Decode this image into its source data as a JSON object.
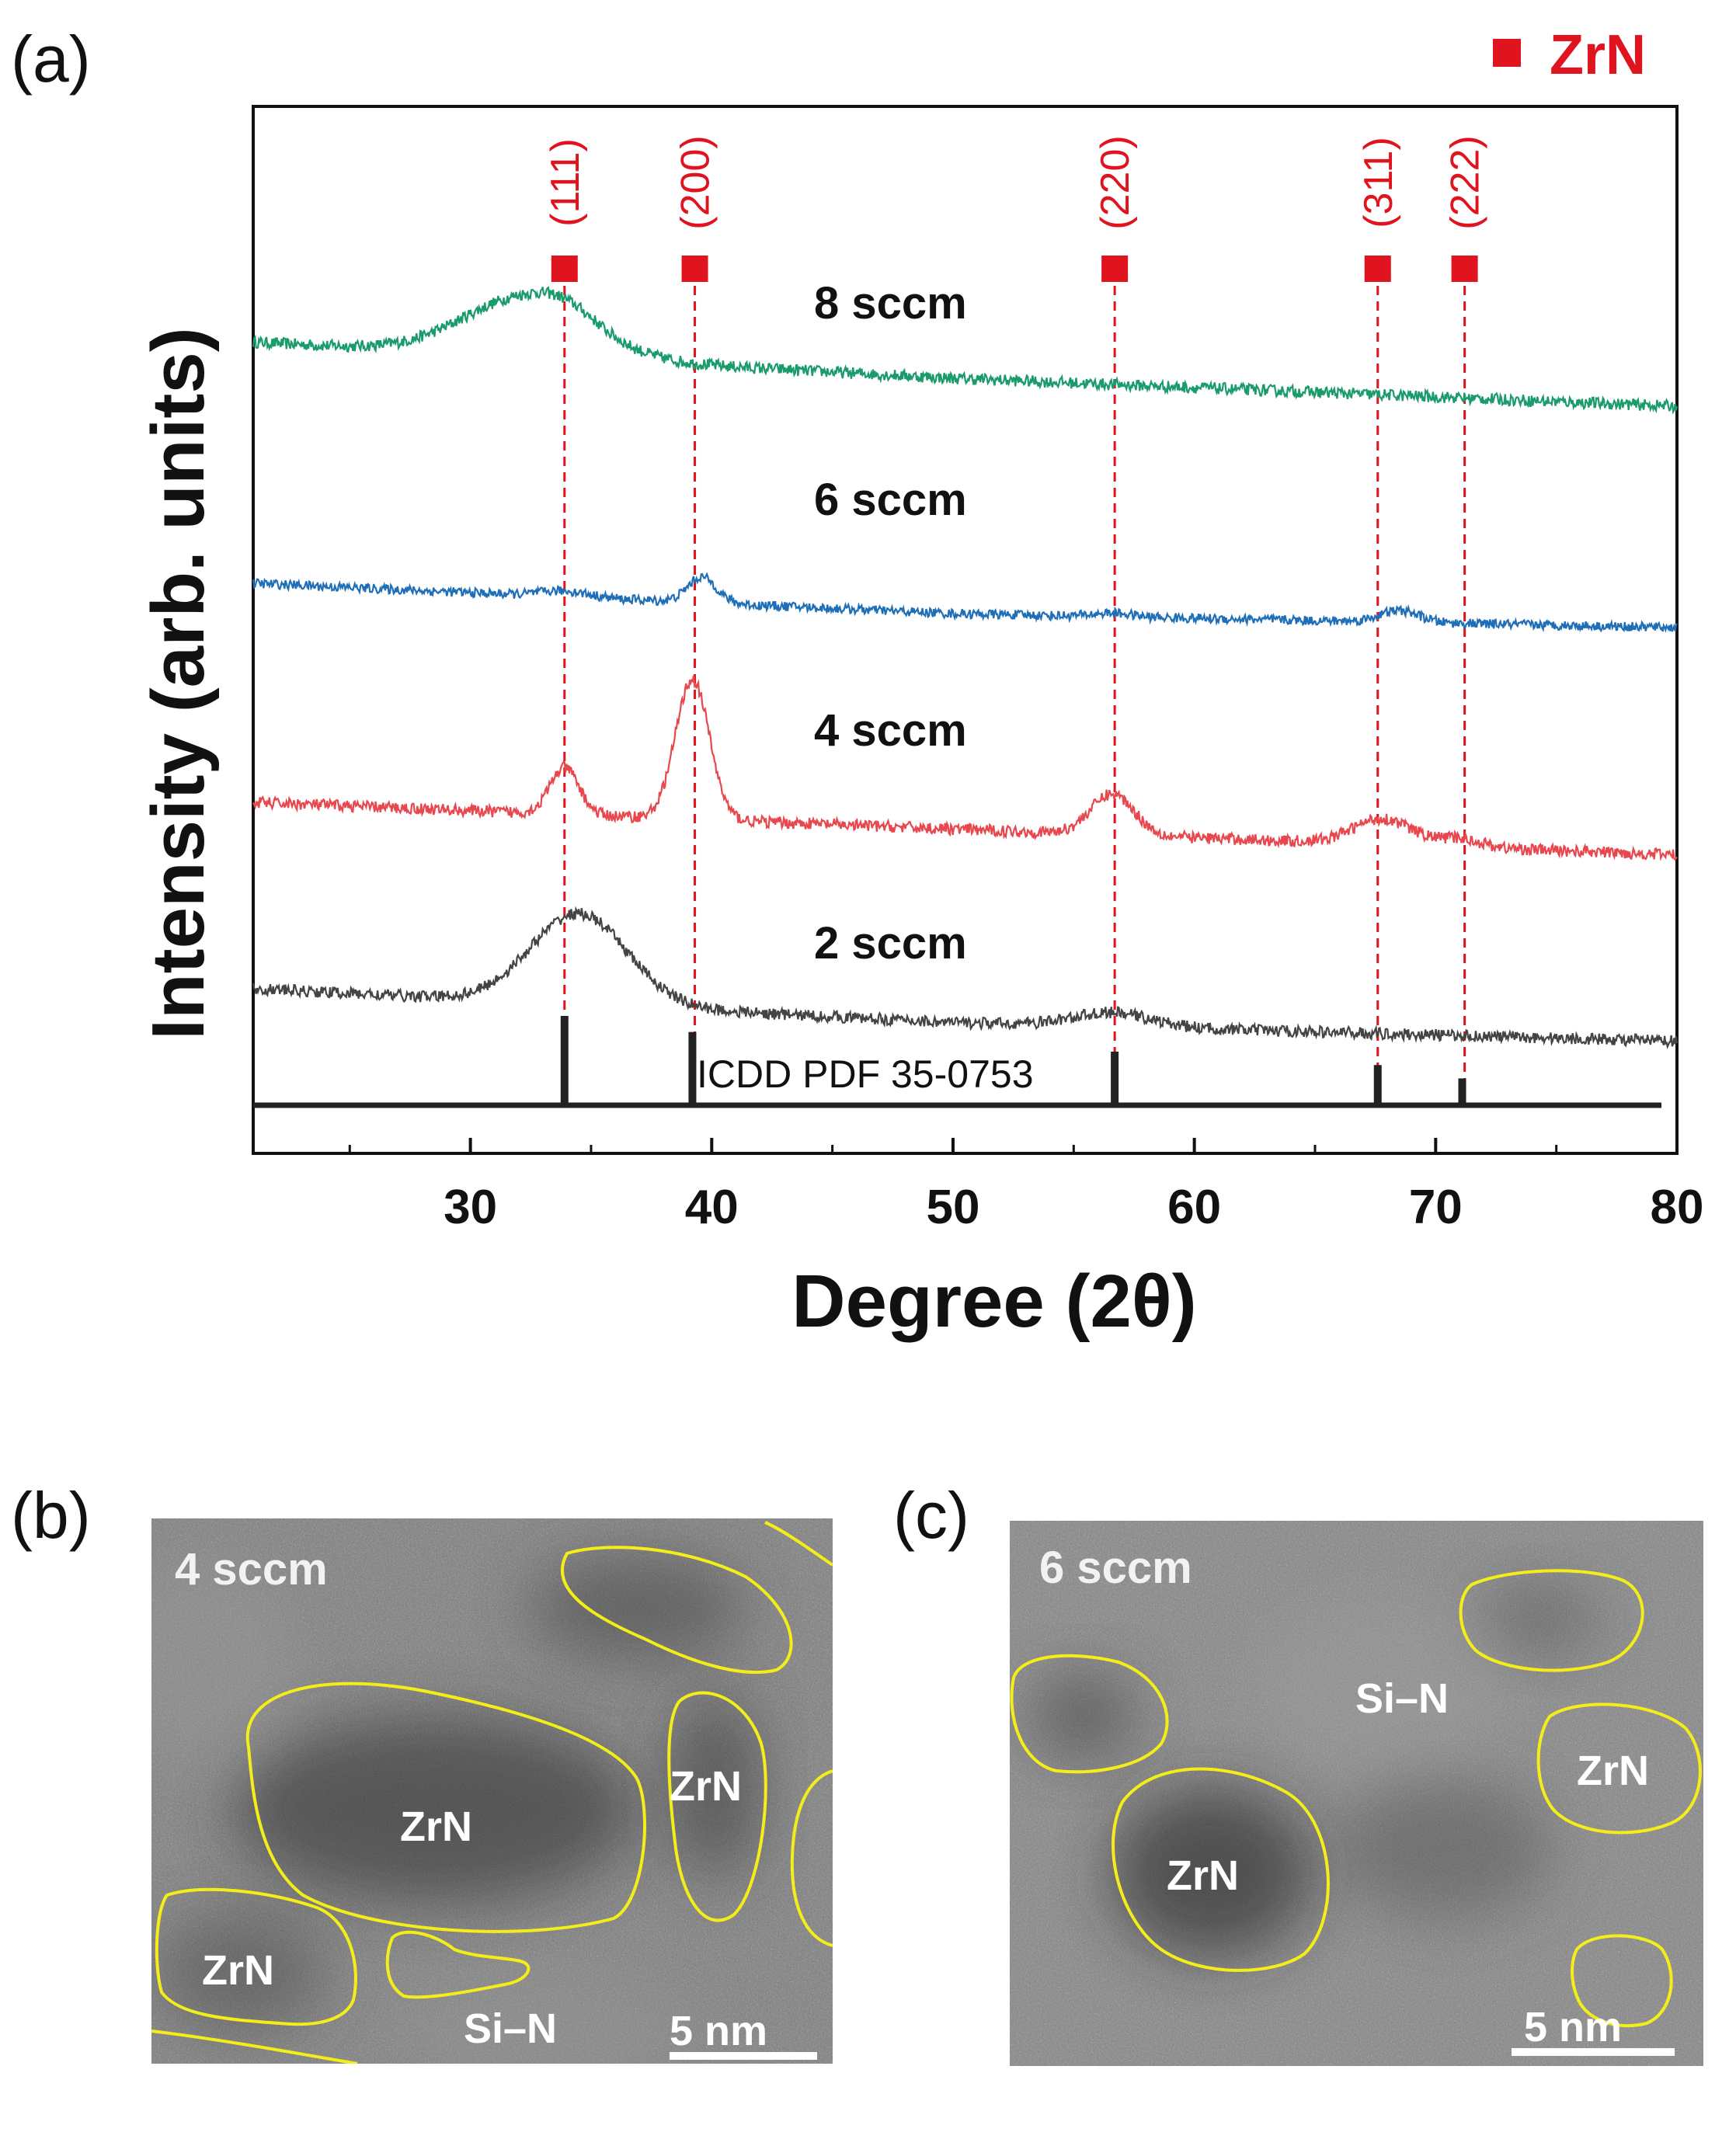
{
  "panels": {
    "a": "(a)",
    "b": "(b)",
    "c": "(c)"
  },
  "colors": {
    "marker": "#e0141e",
    "series_8": "#1a9b6b",
    "series_6": "#1f6fb8",
    "series_4": "#e8474e",
    "series_2": "#444444",
    "outline": "#f3ee1a"
  },
  "chart_data": {
    "type": "line",
    "title": "",
    "xlabel": "Degree (2θ)",
    "ylabel": "Intensity (arb. units)",
    "xlim": [
      21,
      80
    ],
    "x_ticks": [
      30,
      40,
      50,
      60,
      70,
      80
    ],
    "x_minor_ticks": [
      25,
      35,
      45,
      55,
      65,
      75
    ],
    "legend": {
      "label": "ZrN",
      "marker": "square",
      "placement": "top-right"
    },
    "series": [
      {
        "name": "8 sccm",
        "color": "#1a9b6b",
        "offset": 6.0,
        "noise": 0.05,
        "baseline": [
          [
            21,
            0.55
          ],
          [
            50,
            0.24
          ],
          [
            80,
            0.0
          ]
        ],
        "peaks": [
          [
            32.3,
            0.5,
            2.6
          ],
          [
            34.0,
            0.1,
            1.2
          ]
        ]
      },
      {
        "name": "6 sccm",
        "color": "#1f6fb8",
        "offset": 4.1,
        "noise": 0.04,
        "baseline": [
          [
            21,
            0.38
          ],
          [
            50,
            0.12
          ],
          [
            80,
            0.0
          ]
        ],
        "peaks": [
          [
            33.9,
            0.05,
            1.0
          ],
          [
            39.6,
            0.22,
            0.6
          ],
          [
            56.6,
            0.03,
            0.8
          ],
          [
            68.5,
            0.1,
            0.8
          ]
        ]
      },
      {
        "name": "4 sccm",
        "color": "#e8474e",
        "offset": 2.15,
        "noise": 0.05,
        "baseline": [
          [
            21,
            0.45
          ],
          [
            50,
            0.22
          ],
          [
            80,
            0.0
          ]
        ],
        "peaks": [
          [
            33.9,
            0.4,
            0.6
          ],
          [
            39.2,
            1.2,
            0.7
          ],
          [
            56.6,
            0.35,
            0.9
          ],
          [
            67.8,
            0.22,
            1.2
          ],
          [
            71.0,
            0.07,
            0.9
          ]
        ]
      },
      {
        "name": "2 sccm",
        "color": "#444444",
        "offset": 0.55,
        "noise": 0.05,
        "baseline": [
          [
            21,
            0.45
          ],
          [
            50,
            0.16
          ],
          [
            80,
            0.0
          ]
        ],
        "peaks": [
          [
            34.5,
            0.78,
            2.0
          ],
          [
            56.6,
            0.12,
            1.6
          ]
        ]
      }
    ],
    "series_labels": [
      "8 sccm",
      "6 sccm",
      "4 sccm",
      "2 sccm"
    ],
    "reference": {
      "label": "ICDD PDF 35-0753",
      "positions": [
        33.9,
        39.2,
        56.7,
        67.6,
        71.1
      ],
      "heights": [
        1.0,
        0.82,
        0.6,
        0.45,
        0.3
      ]
    },
    "hkl": [
      {
        "label": "(111)",
        "x": 33.9
      },
      {
        "label": "(200)",
        "x": 39.3
      },
      {
        "label": "(220)",
        "x": 56.7
      },
      {
        "label": "(311)",
        "x": 67.6
      },
      {
        "label": "(222)",
        "x": 71.2
      }
    ]
  },
  "tem_b": {
    "condition": "4 sccm",
    "zrn_label": "ZrN",
    "matrix_label": "Si–N",
    "scale_bar": "5 nm"
  },
  "tem_c": {
    "condition": "6 sccm",
    "zrn_label": "ZrN",
    "matrix_label": "Si–N",
    "scale_bar": "5 nm"
  }
}
